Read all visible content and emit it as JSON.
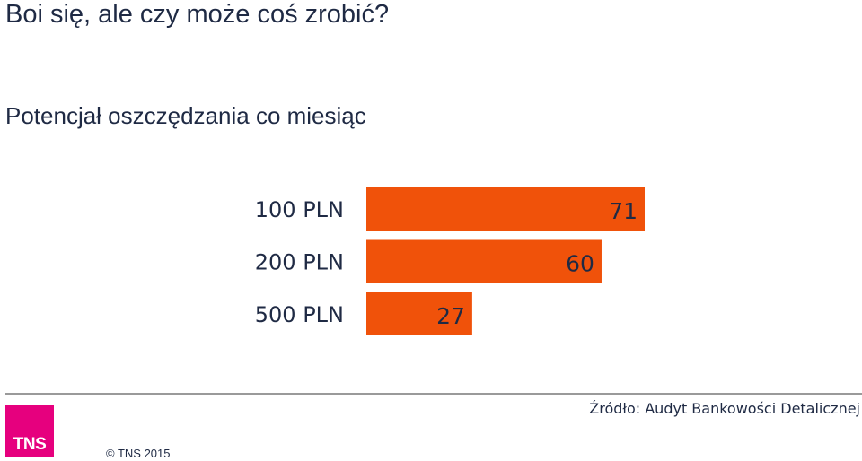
{
  "title": "Boi się, ale czy może coś zrobić?",
  "subtitle": "Potencjał oszczędzania co miesiąc",
  "chart_data": {
    "type": "bar",
    "orientation": "horizontal",
    "title": "Potencjał oszczędzania co miesiąc",
    "categories": [
      "100 PLN",
      "200 PLN",
      "500 PLN"
    ],
    "values": [
      71,
      60,
      27
    ],
    "bar_color": "#f0520a",
    "grid": false,
    "legend": "none"
  },
  "source": "Źródło: Audyt Bankowości Detalicznej",
  "logo": {
    "text": "TNS",
    "color": "#e6007e"
  },
  "copyright": "© TNS 2015"
}
